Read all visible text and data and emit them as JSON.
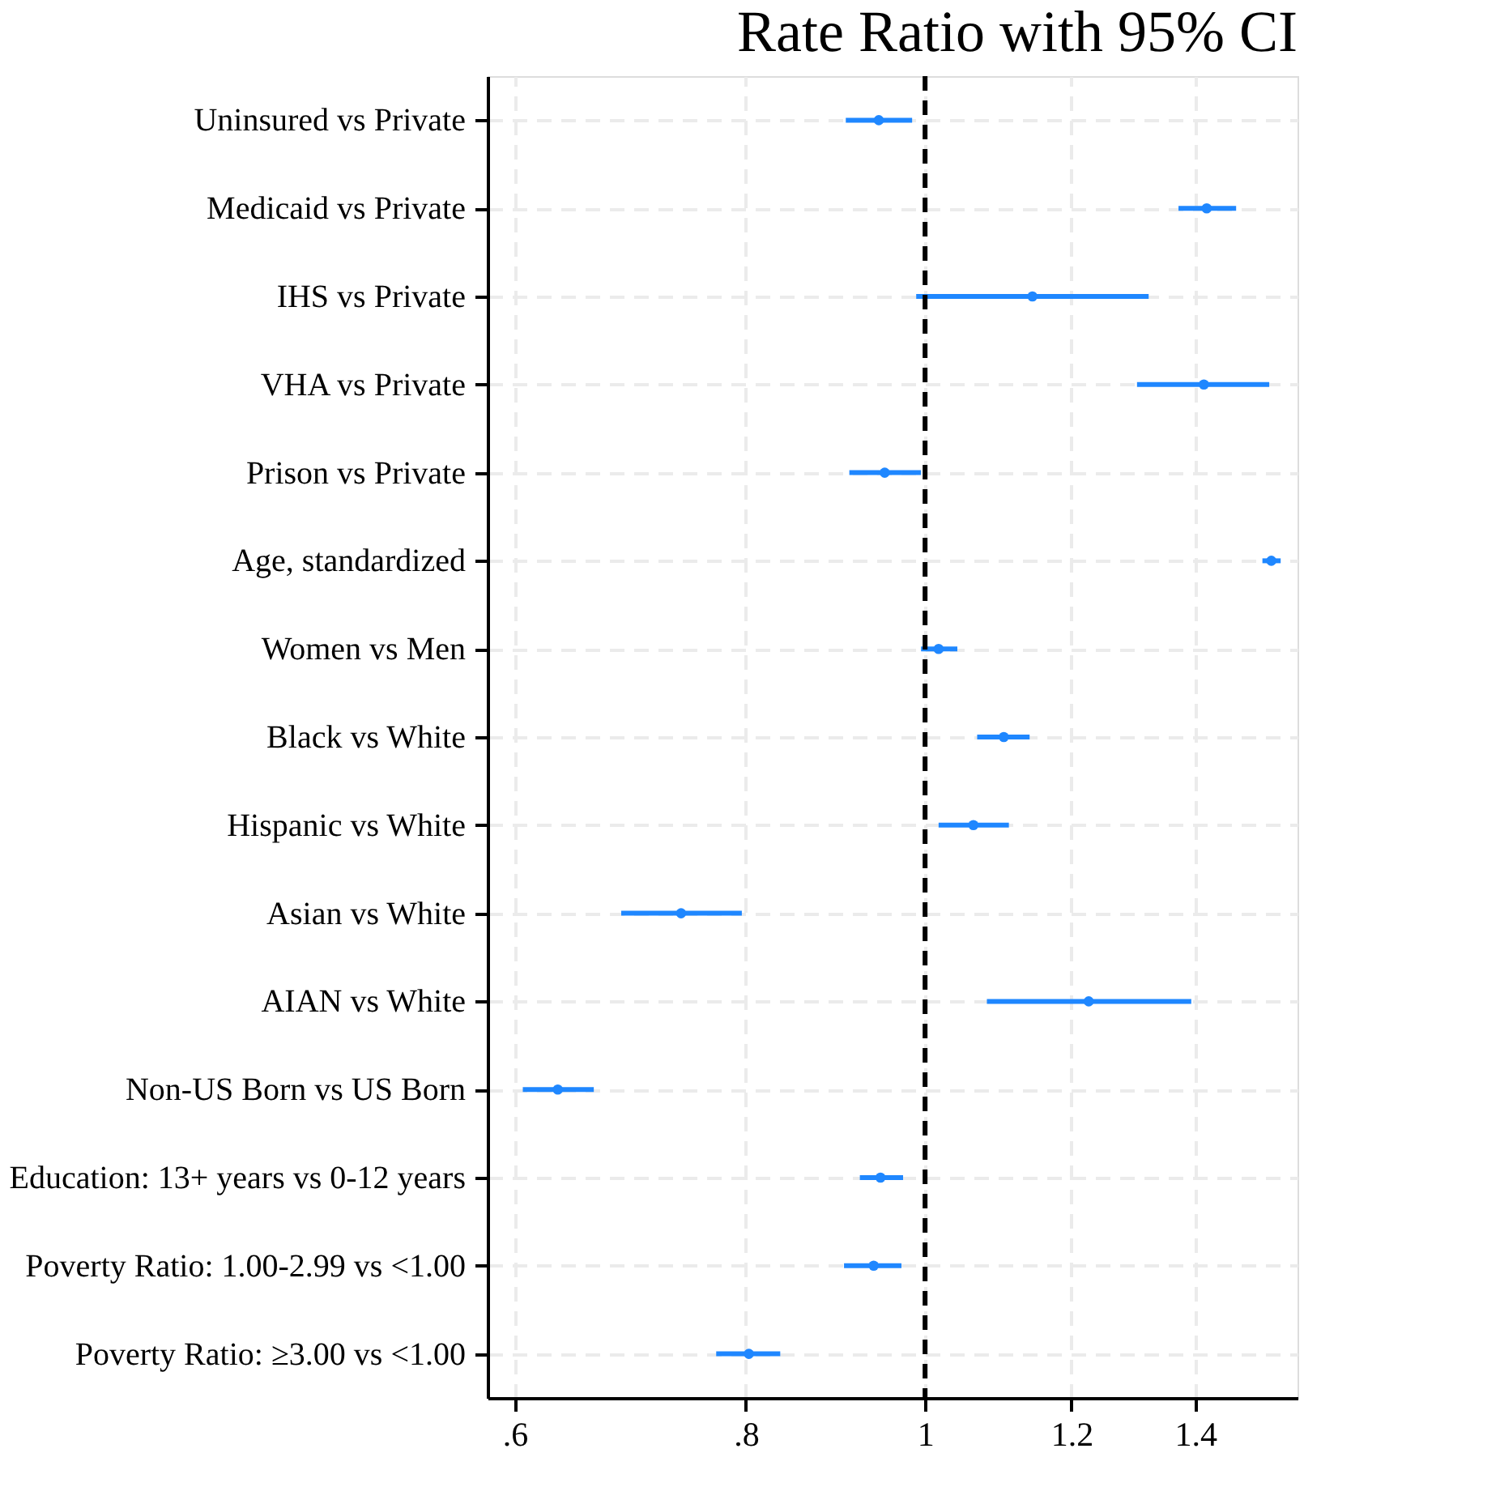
{
  "chart_data": {
    "type": "scatter",
    "orientation": "horizontal",
    "title": "Rate Ratio with 95% CI",
    "categories": [
      "Uninsured vs Private",
      "Medicaid vs Private",
      "IHS vs Private",
      "VHA vs Private",
      "Prison vs Private",
      "Age, standardized",
      "Women vs Men",
      "Black vs White",
      "Hispanic vs White",
      "Asian vs White",
      "AIAN vs White",
      "Non-US Born vs US Born",
      "Education: 13+ years vs 0-12 years",
      "Poverty Ratio: 1.00-2.99 vs <1.00",
      "Poverty Ratio: ≥3.00 vs <1.00"
    ],
    "series": [
      {
        "color": "#1f87ff",
        "values": [
          0.944,
          1.42,
          1.143,
          1.415,
          0.951,
          1.539,
          1.017,
          1.103,
          1.062,
          0.738,
          1.226,
          0.633,
          0.946,
          0.938,
          0.803
        ],
        "errors": [
          [
            0.906,
            0.984
          ],
          [
            1.371,
            1.473
          ],
          [
            0.989,
            1.321
          ],
          [
            1.302,
            1.535
          ],
          [
            0.91,
            0.995
          ],
          [
            1.522,
            1.557
          ],
          [
            0.995,
            1.041
          ],
          [
            1.067,
            1.139
          ],
          [
            1.017,
            1.11
          ],
          [
            0.685,
            0.796
          ],
          [
            1.08,
            1.393
          ],
          [
            0.606,
            0.662
          ],
          [
            0.922,
            0.973
          ],
          [
            0.904,
            0.971
          ],
          [
            0.771,
            0.835
          ]
        ]
      }
    ],
    "log": "x",
    "xlim": [
      0.58,
      1.59
    ],
    "xticks": [
      {
        "value": 0.6,
        "label": ".6"
      },
      {
        "value": 0.8,
        "label": ".8"
      },
      1,
      1.2,
      1.4
    ],
    "ref_lines": [
      {
        "axis": "x",
        "value": 1,
        "color": "#000000",
        "line_style": "dashed"
      }
    ],
    "grid": true,
    "marker": "circle",
    "legend": false
  }
}
